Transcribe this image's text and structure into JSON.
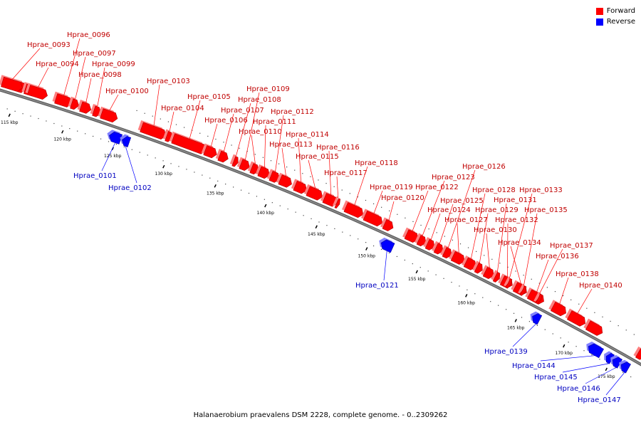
{
  "legend": {
    "forward_label": "Forward",
    "reverse_label": "Reverse",
    "forward_color": "#ff0000",
    "reverse_color": "#0000ff"
  },
  "caption": "Halanaerobium praevalens DSM 2228, complete genome. - 0..2309262",
  "backbone_color": "#888888",
  "ticks": [
    "115 kbp",
    "120 kbp",
    "125 kbp",
    "130 kbp",
    "135 kbp",
    "140 kbp",
    "145 kbp",
    "150 kbp",
    "155 kbp",
    "160 kbp",
    "165 kbp",
    "170 kbp",
    "175 kbp"
  ],
  "genes": [
    {
      "name": "Hprae_0093",
      "strand": "forward"
    },
    {
      "name": "Hprae_0094",
      "strand": "forward"
    },
    {
      "name": "Hprae_0096",
      "strand": "forward"
    },
    {
      "name": "Hprae_0097",
      "strand": "forward"
    },
    {
      "name": "Hprae_0098",
      "strand": "forward"
    },
    {
      "name": "Hprae_0099",
      "strand": "forward"
    },
    {
      "name": "Hprae_0100",
      "strand": "forward"
    },
    {
      "name": "Hprae_0101",
      "strand": "reverse"
    },
    {
      "name": "Hprae_0102",
      "strand": "reverse"
    },
    {
      "name": "Hprae_0103",
      "strand": "forward"
    },
    {
      "name": "Hprae_0104",
      "strand": "forward"
    },
    {
      "name": "Hprae_0105",
      "strand": "forward"
    },
    {
      "name": "Hprae_0106",
      "strand": "forward"
    },
    {
      "name": "Hprae_0107",
      "strand": "forward"
    },
    {
      "name": "Hprae_0108",
      "strand": "forward"
    },
    {
      "name": "Hprae_0109",
      "strand": "forward"
    },
    {
      "name": "Hprae_0110",
      "strand": "forward"
    },
    {
      "name": "Hprae_0111",
      "strand": "forward"
    },
    {
      "name": "Hprae_0112",
      "strand": "forward"
    },
    {
      "name": "Hprae_0113",
      "strand": "forward"
    },
    {
      "name": "Hprae_0114",
      "strand": "forward"
    },
    {
      "name": "Hprae_0115",
      "strand": "forward"
    },
    {
      "name": "Hprae_0116",
      "strand": "forward"
    },
    {
      "name": "Hprae_0117",
      "strand": "forward"
    },
    {
      "name": "Hprae_0118",
      "strand": "forward"
    },
    {
      "name": "Hprae_0119",
      "strand": "forward"
    },
    {
      "name": "Hprae_0120",
      "strand": "forward"
    },
    {
      "name": "Hprae_0121",
      "strand": "reverse"
    },
    {
      "name": "Hprae_0122",
      "strand": "forward"
    },
    {
      "name": "Hprae_0123",
      "strand": "forward"
    },
    {
      "name": "Hprae_0124",
      "strand": "forward"
    },
    {
      "name": "Hprae_0125",
      "strand": "forward"
    },
    {
      "name": "Hprae_0126",
      "strand": "forward"
    },
    {
      "name": "Hprae_0127",
      "strand": "forward"
    },
    {
      "name": "Hprae_0128",
      "strand": "forward"
    },
    {
      "name": "Hprae_0129",
      "strand": "forward"
    },
    {
      "name": "Hprae_0130",
      "strand": "forward"
    },
    {
      "name": "Hprae_0131",
      "strand": "forward"
    },
    {
      "name": "Hprae_0132",
      "strand": "forward"
    },
    {
      "name": "Hprae_0133",
      "strand": "forward"
    },
    {
      "name": "Hprae_0134",
      "strand": "forward"
    },
    {
      "name": "Hprae_0135",
      "strand": "forward"
    },
    {
      "name": "Hprae_0136",
      "strand": "forward"
    },
    {
      "name": "Hprae_0137",
      "strand": "forward"
    },
    {
      "name": "Hprae_0138",
      "strand": "forward"
    },
    {
      "name": "Hprae_0139",
      "strand": "reverse"
    },
    {
      "name": "Hprae_0140",
      "strand": "forward"
    },
    {
      "name": "Hprae_0144",
      "strand": "reverse"
    },
    {
      "name": "Hprae_0145",
      "strand": "reverse"
    },
    {
      "name": "Hprae_0146",
      "strand": "reverse"
    },
    {
      "name": "Hprae_0147",
      "strand": "reverse"
    }
  ]
}
